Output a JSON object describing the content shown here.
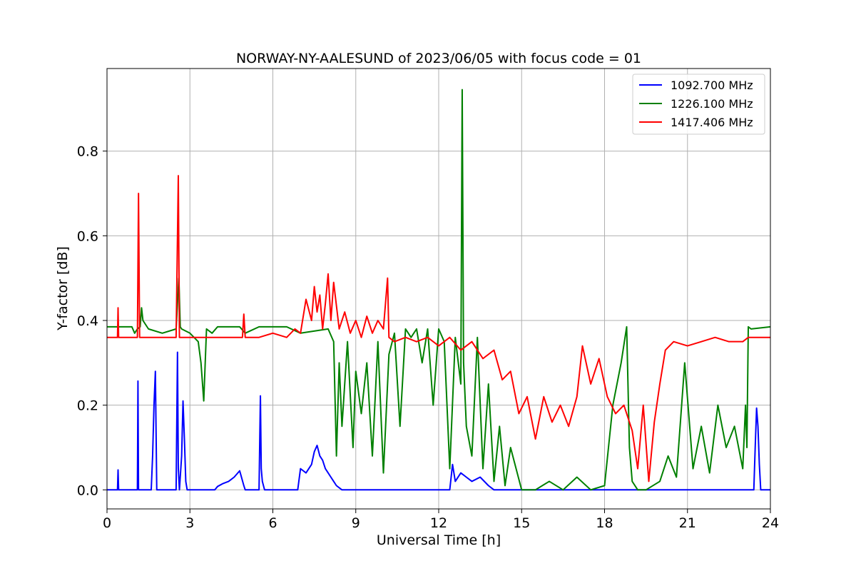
{
  "chart_data": {
    "type": "line",
    "title": "NORWAY-NY-AALESUND of 2023/06/05 with focus code = 01",
    "xlabel": "Universal Time [h]",
    "ylabel": "Y-factor [dB]",
    "xlim": [
      0,
      24
    ],
    "ylim": [
      -0.045,
      0.995
    ],
    "xticks": [
      0,
      3,
      6,
      9,
      12,
      15,
      18,
      21,
      24
    ],
    "xtick_labels": [
      "0",
      "3",
      "6",
      "9",
      "12",
      "15",
      "18",
      "21",
      "24"
    ],
    "yticks": [
      0.0,
      0.2,
      0.4,
      0.6,
      0.8
    ],
    "ytick_labels": [
      "0.0",
      "0.2",
      "0.4",
      "0.6",
      "0.8"
    ],
    "grid": true,
    "legend_position": "top-right",
    "series": [
      {
        "name": "1092.700 MHz",
        "color": "#0000ff",
        "x": [
          0,
          0.38,
          0.4,
          0.42,
          1.1,
          1.12,
          1.14,
          1.6,
          1.65,
          1.7,
          1.75,
          1.8,
          2.5,
          2.55,
          2.58,
          2.62,
          2.7,
          2.75,
          2.8,
          2.85,
          2.9,
          3.9,
          4.0,
          4.2,
          4.4,
          4.6,
          4.8,
          4.95,
          5.0,
          5.5,
          5.55,
          5.58,
          5.62,
          5.7,
          6.9,
          7.0,
          7.2,
          7.4,
          7.5,
          7.6,
          7.7,
          7.8,
          7.9,
          8.0,
          8.1,
          8.2,
          8.3,
          8.5,
          9.5,
          10.2,
          12.4,
          12.5,
          12.6,
          12.8,
          13.0,
          13.2,
          13.5,
          13.8,
          14.0,
          23.4,
          23.45,
          23.5,
          23.55,
          23.6,
          23.65,
          24
        ],
        "y": [
          0,
          0,
          0.047,
          0,
          0,
          0.257,
          0,
          0,
          0.08,
          0.2,
          0.28,
          0,
          0,
          0.325,
          0.05,
          0,
          0.08,
          0.21,
          0.12,
          0.02,
          0,
          0,
          0.008,
          0.015,
          0.02,
          0.03,
          0.045,
          0.01,
          0,
          0,
          0.222,
          0.05,
          0.02,
          0,
          0,
          0.05,
          0.04,
          0.06,
          0.09,
          0.105,
          0.08,
          0.07,
          0.05,
          0.04,
          0.03,
          0.02,
          0.01,
          0,
          0,
          0,
          0,
          0.06,
          0.02,
          0.04,
          0.03,
          0.02,
          0.03,
          0.01,
          0,
          0,
          0.1,
          0.193,
          0.15,
          0.06,
          0,
          0
        ]
      },
      {
        "name": "1226.100 MHz",
        "color": "#008000",
        "x": [
          0,
          0.9,
          1.0,
          1.1,
          1.2,
          1.25,
          1.3,
          1.5,
          2.0,
          2.5,
          2.6,
          2.65,
          2.7,
          3.0,
          3.3,
          3.4,
          3.5,
          3.6,
          3.8,
          4.0,
          4.8,
          5.0,
          5.5,
          6.5,
          7.0,
          8.0,
          8.2,
          8.3,
          8.4,
          8.5,
          8.7,
          8.9,
          9.0,
          9.2,
          9.4,
          9.6,
          9.8,
          10.0,
          10.2,
          10.4,
          10.6,
          10.8,
          11.0,
          11.2,
          11.4,
          11.6,
          11.8,
          12.0,
          12.2,
          12.4,
          12.6,
          12.8,
          12.85,
          12.9,
          13.0,
          13.2,
          13.4,
          13.6,
          13.8,
          14.0,
          14.2,
          14.4,
          14.6,
          14.8,
          15.0,
          15.5,
          16.0,
          16.5,
          17.0,
          17.5,
          18.0,
          18.3,
          18.6,
          18.8,
          18.9,
          19.0,
          19.2,
          19.5,
          20.0,
          20.3,
          20.6,
          20.9,
          21.2,
          21.5,
          21.8,
          22.1,
          22.4,
          22.7,
          23.0,
          23.1,
          23.15,
          23.2,
          23.3,
          24
        ],
        "y": [
          0.385,
          0.385,
          0.37,
          0.38,
          0.385,
          0.43,
          0.4,
          0.38,
          0.37,
          0.38,
          0.5,
          0.385,
          0.38,
          0.37,
          0.35,
          0.3,
          0.21,
          0.38,
          0.37,
          0.385,
          0.385,
          0.37,
          0.385,
          0.385,
          0.37,
          0.38,
          0.35,
          0.08,
          0.3,
          0.15,
          0.35,
          0.1,
          0.28,
          0.18,
          0.3,
          0.08,
          0.35,
          0.04,
          0.32,
          0.37,
          0.15,
          0.38,
          0.36,
          0.38,
          0.3,
          0.38,
          0.2,
          0.38,
          0.35,
          0.05,
          0.36,
          0.25,
          0.945,
          0.3,
          0.15,
          0.08,
          0.36,
          0.05,
          0.25,
          0.02,
          0.15,
          0.01,
          0.1,
          0.05,
          0,
          0,
          0.02,
          0,
          0.03,
          0,
          0.01,
          0.2,
          0.3,
          0.385,
          0.1,
          0.02,
          0,
          0,
          0.02,
          0.08,
          0.03,
          0.3,
          0.05,
          0.15,
          0.04,
          0.2,
          0.1,
          0.15,
          0.05,
          0.2,
          0.1,
          0.385,
          0.38,
          0.385
        ]
      },
      {
        "name": "1417.406 MHz",
        "color": "#ff0000",
        "x": [
          0,
          0.38,
          0.4,
          0.42,
          1.1,
          1.14,
          1.18,
          2.5,
          2.58,
          2.62,
          3.0,
          4.9,
          4.95,
          5.0,
          5.5,
          6.0,
          6.5,
          6.8,
          7.0,
          7.2,
          7.4,
          7.5,
          7.6,
          7.7,
          7.8,
          7.9,
          8.0,
          8.1,
          8.2,
          8.4,
          8.6,
          8.8,
          9.0,
          9.2,
          9.4,
          9.6,
          9.8,
          10.0,
          10.15,
          10.2,
          10.4,
          10.8,
          11.2,
          11.6,
          12.0,
          12.4,
          12.8,
          13.2,
          13.6,
          14.0,
          14.3,
          14.6,
          14.9,
          15.2,
          15.5,
          15.8,
          16.1,
          16.4,
          16.7,
          17.0,
          17.2,
          17.5,
          17.8,
          18.1,
          18.4,
          18.7,
          19.0,
          19.2,
          19.4,
          19.6,
          19.8,
          20.0,
          20.2,
          20.5,
          21.0,
          21.5,
          22.0,
          22.5,
          23.0,
          23.2,
          24
        ],
        "y": [
          0.36,
          0.36,
          0.43,
          0.36,
          0.36,
          0.7,
          0.36,
          0.36,
          0.742,
          0.36,
          0.36,
          0.36,
          0.415,
          0.36,
          0.36,
          0.37,
          0.36,
          0.38,
          0.37,
          0.45,
          0.4,
          0.48,
          0.42,
          0.46,
          0.38,
          0.44,
          0.51,
          0.4,
          0.49,
          0.38,
          0.42,
          0.37,
          0.4,
          0.36,
          0.41,
          0.37,
          0.4,
          0.38,
          0.5,
          0.36,
          0.35,
          0.36,
          0.35,
          0.36,
          0.34,
          0.36,
          0.33,
          0.35,
          0.31,
          0.33,
          0.26,
          0.28,
          0.18,
          0.22,
          0.12,
          0.22,
          0.16,
          0.2,
          0.15,
          0.22,
          0.34,
          0.25,
          0.31,
          0.22,
          0.18,
          0.2,
          0.14,
          0.05,
          0.2,
          0.02,
          0.16,
          0.25,
          0.33,
          0.35,
          0.34,
          0.35,
          0.36,
          0.35,
          0.35,
          0.36,
          0.36
        ]
      }
    ]
  }
}
